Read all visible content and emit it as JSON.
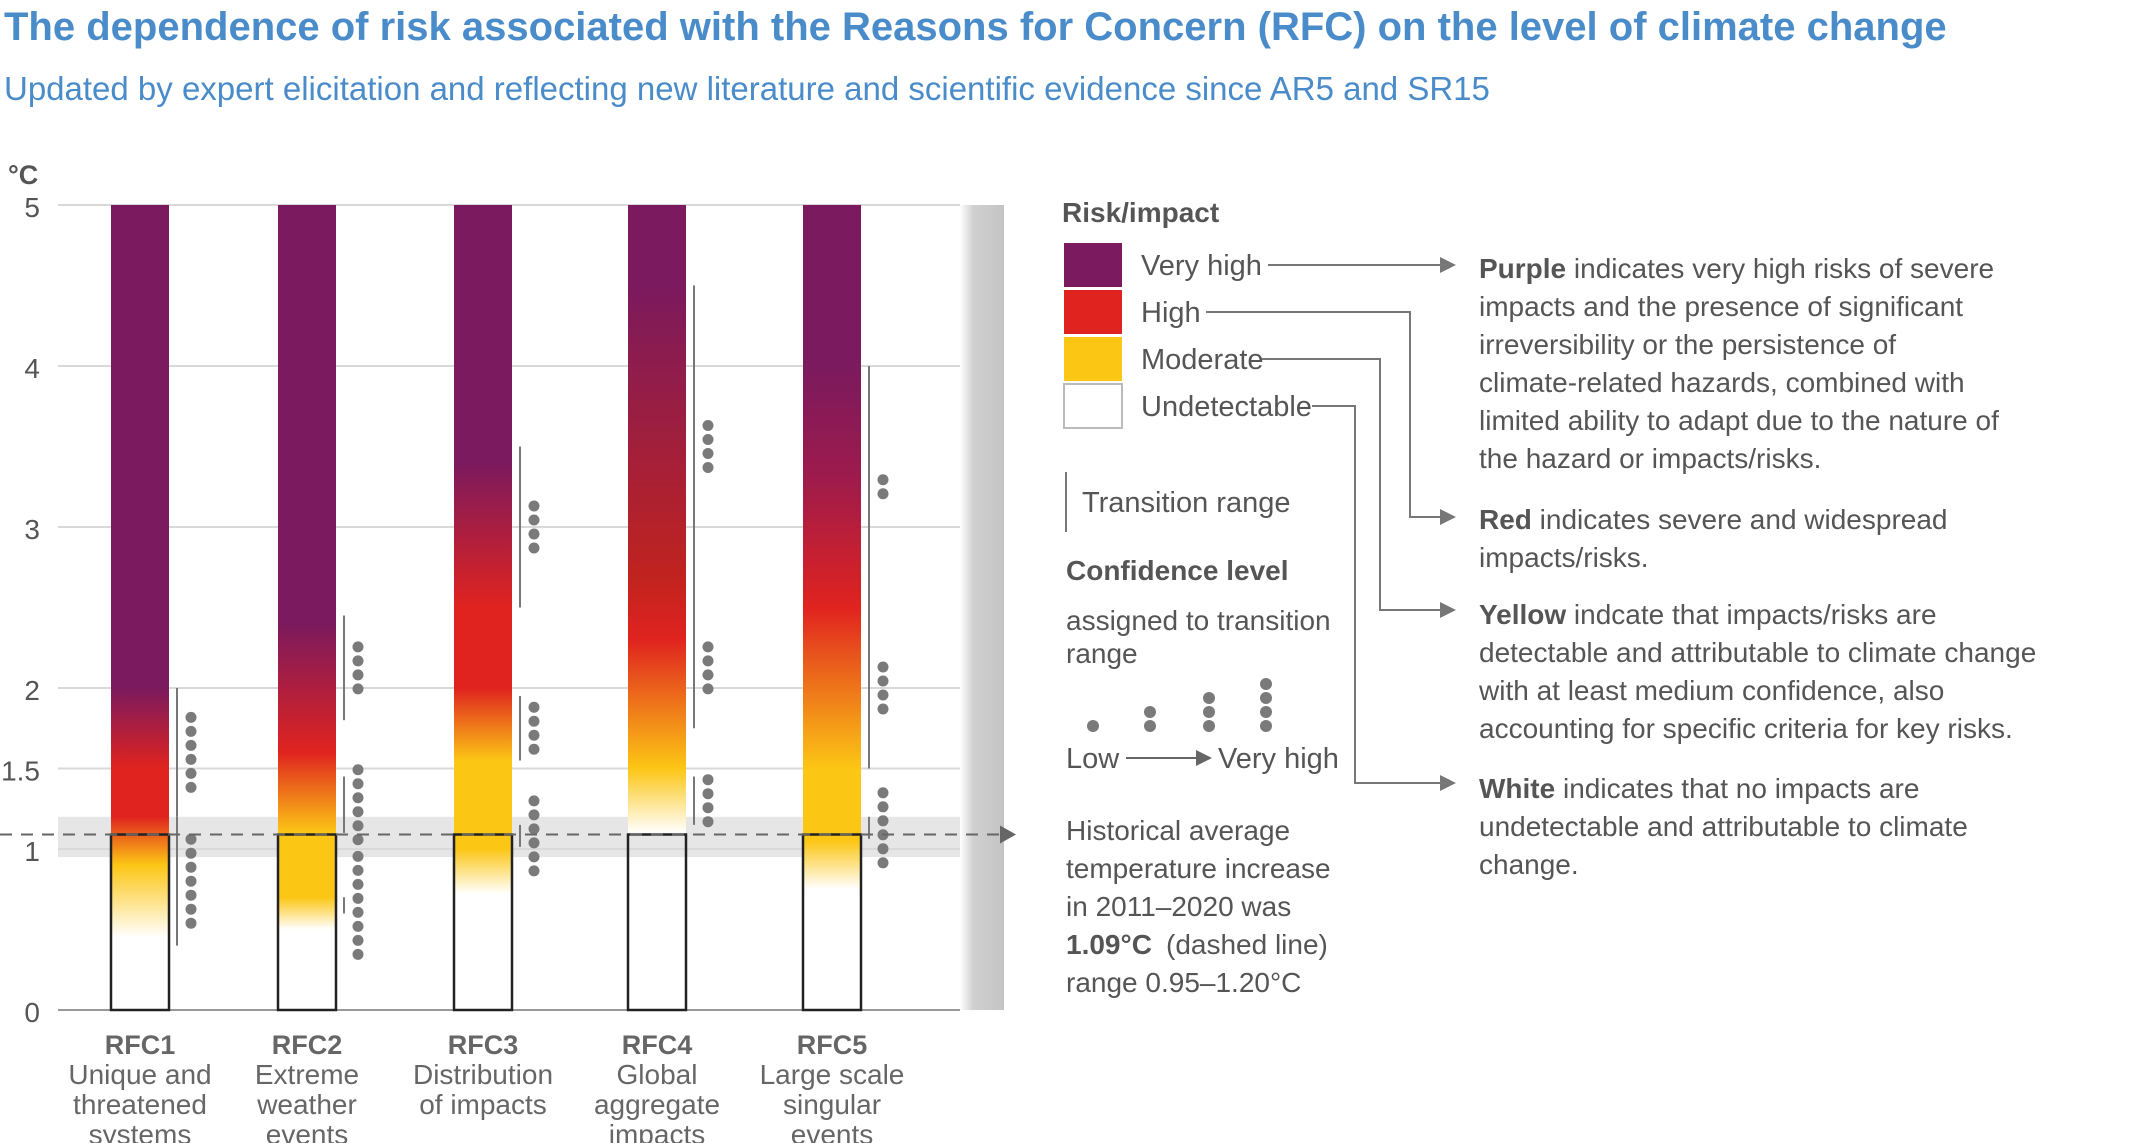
{
  "title": "The dependence of risk associated with the Reasons for Concern (RFC) on the level of climate change",
  "subtitle": "Updated by expert elicitation and reflecting new literature and scientific evidence since AR5 and SR15",
  "colors": {
    "very_high": "#7b1a5e",
    "high": "#e0231f",
    "moderate": "#fcc615",
    "undetectable": "#ffffff",
    "title": "#4a8bc9",
    "dots": "#7a7a7a",
    "gridline": "#d9d9d9",
    "historical_band": "#e6e6e6"
  },
  "chart_data": {
    "type": "bar",
    "ylabel": "°C",
    "ylim": [
      0,
      5
    ],
    "yticks": [
      0,
      1,
      1.5,
      2,
      3,
      4,
      5
    ],
    "ytick_labels": [
      "0",
      "1",
      "1.5",
      "2",
      "3",
      "4",
      "5"
    ],
    "grid": true,
    "historical": {
      "value": 1.09,
      "range": [
        0.95,
        1.2
      ]
    },
    "categories": [
      {
        "name": "RFC1",
        "desc": [
          "Unique and",
          "threatened",
          "systems"
        ],
        "white_top": 0.45,
        "stops": [
          [
            0.45,
            "#ffffff"
          ],
          [
            0.9,
            "#fcc615"
          ],
          [
            1.2,
            "#e0231f"
          ],
          [
            1.5,
            "#e0231f"
          ],
          [
            2.0,
            "#7b1a5e"
          ],
          [
            5.0,
            "#7b1a5e"
          ]
        ],
        "transitions": [
          {
            "from": 0.4,
            "to": 1.2,
            "dots": [
              3,
              4
            ]
          },
          {
            "from": 1.2,
            "to": 2.0,
            "dots": [
              2,
              4
            ]
          }
        ]
      },
      {
        "name": "RFC2",
        "desc": [
          "Extreme",
          "weather",
          "events"
        ],
        "white_top": 0.5,
        "stops": [
          [
            0.5,
            "#ffffff"
          ],
          [
            0.7,
            "#fcc615"
          ],
          [
            1.1,
            "#fcc615"
          ],
          [
            1.6,
            "#e0231f"
          ],
          [
            2.4,
            "#7b1a5e"
          ],
          [
            5.0,
            "#7b1a5e"
          ]
        ],
        "transitions": [
          {
            "from": 0.6,
            "to": 0.7,
            "dots": [
              4,
              4
            ]
          },
          {
            "from": 1.1,
            "to": 1.45,
            "dots": [
              3,
              3
            ]
          },
          {
            "from": 1.8,
            "to": 2.45,
            "dots": [
              2,
              2
            ]
          }
        ]
      },
      {
        "name": "RFC3",
        "desc": [
          "Distribution",
          "of impacts"
        ],
        "white_top": 0.72,
        "stops": [
          [
            0.72,
            "#ffffff"
          ],
          [
            1.0,
            "#fcc615"
          ],
          [
            1.55,
            "#fcc615"
          ],
          [
            2.0,
            "#e0231f"
          ],
          [
            2.5,
            "#e0231f"
          ],
          [
            3.4,
            "#7b1a5e"
          ],
          [
            5.0,
            "#7b1a5e"
          ]
        ],
        "transitions": [
          {
            "from": 1.15,
            "to": 1.15,
            "dots": [
              3,
              3
            ]
          },
          {
            "from": 1.55,
            "to": 1.95,
            "dots": [
              2,
              2
            ]
          },
          {
            "from": 2.5,
            "to": 3.5,
            "dots": [
              2,
              2
            ]
          }
        ]
      },
      {
        "name": "RFC4",
        "desc": [
          "Global",
          "aggregate",
          "impacts"
        ],
        "white_top": 1.1,
        "stops": [
          [
            1.1,
            "#ffffff"
          ],
          [
            1.5,
            "#fcc615"
          ],
          [
            2.3,
            "#e0231f"
          ],
          [
            2.7,
            "#c0231f"
          ],
          [
            4.5,
            "#7b1a5e"
          ],
          [
            5.0,
            "#7b1a5e"
          ]
        ],
        "transitions": [
          {
            "from": 1.15,
            "to": 1.45,
            "dots": [
              2,
              2
            ]
          },
          {
            "from": 1.75,
            "to": 2.5,
            "dots": [
              2,
              2
            ]
          },
          {
            "from": 2.5,
            "to": 4.5,
            "dots": [
              2,
              2
            ]
          }
        ]
      },
      {
        "name": "RFC5",
        "desc": [
          "Large scale",
          "singular",
          "events"
        ],
        "white_top": 0.75,
        "stops": [
          [
            0.75,
            "#ffffff"
          ],
          [
            1.05,
            "#fcc615"
          ],
          [
            1.5,
            "#fcc615"
          ],
          [
            2.5,
            "#e0231f"
          ],
          [
            3.3,
            "#9e1b4c"
          ],
          [
            4.0,
            "#7b1a5e"
          ],
          [
            5.0,
            "#7b1a5e"
          ]
        ],
        "transitions": [
          {
            "from": 1.2,
            "to": 1.2,
            "dots": [
              3,
              3
            ]
          },
          {
            "from": 1.5,
            "to": 2.5,
            "dots": [
              2,
              2
            ]
          },
          {
            "from": 2.5,
            "to": 4.0,
            "dots": [
              1,
              1
            ]
          }
        ]
      }
    ]
  },
  "legend": {
    "risk_title": "Risk/impact",
    "levels": [
      "Very high",
      "High",
      "Moderate",
      "Undetectable"
    ],
    "transition": "Transition range",
    "confidence_title": "Confidence level",
    "confidence_sub": [
      "assigned to transition",
      "range"
    ],
    "low": "Low",
    "very_high": "Very high",
    "historical": [
      "Historical average",
      "temperature increase",
      "in 2011–2020 was"
    ],
    "historical_bold": "1.09°C",
    "historical_rest": "(dashed line)",
    "historical_range": "range 0.95–1.20°C"
  },
  "descriptions": [
    {
      "bold": "Purple",
      "lines": [
        " indicates very high risks of severe",
        "impacts and the presence of significant",
        "irreversibility or the persistence of",
        "climate-related hazards, combined with",
        "limited ability to adapt due to the nature of",
        "the hazard or impacts/risks."
      ]
    },
    {
      "bold": "Red",
      "lines": [
        " indicates severe and widespread",
        "impacts/risks."
      ]
    },
    {
      "bold": "Yellow",
      "lines": [
        " indcate that impacts/risks are",
        "detectable and attributable to climate change",
        "with at least medium confidence, also",
        "accounting for specific criteria for key risks."
      ]
    },
    {
      "bold": "White",
      "lines": [
        " indicates that no impacts are",
        "undetectable and attributable to climate",
        "change."
      ]
    }
  ]
}
